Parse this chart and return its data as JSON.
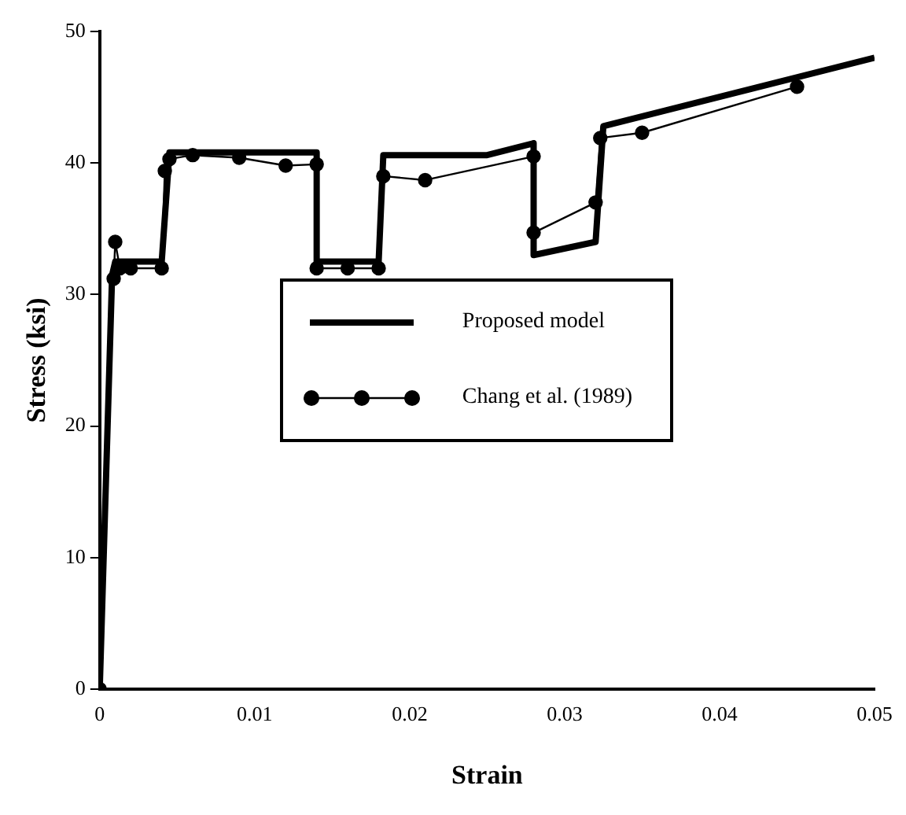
{
  "chart_data": {
    "type": "line",
    "xlabel": "Strain",
    "ylabel": "Stress (ksi)",
    "xlim": [
      0,
      0.05
    ],
    "ylim": [
      0,
      50
    ],
    "xticks": [
      0,
      0.01,
      0.02,
      0.03,
      0.04,
      0.05
    ],
    "yticks": [
      0,
      10,
      20,
      30,
      40,
      50
    ],
    "grid": false,
    "legend": "center right",
    "series": [
      {
        "name": "Proposed model",
        "color": "#000000",
        "marker": "none",
        "x": [
          0,
          0.0008,
          0.001,
          0.004,
          0.0045,
          0.014,
          0.014,
          0.018,
          0.0183,
          0.025,
          0.028,
          0.028,
          0.032,
          0.0325,
          0.05
        ],
        "values": [
          0,
          31.5,
          32.5,
          32.5,
          40.8,
          40.8,
          32.5,
          32.5,
          40.6,
          40.6,
          41.5,
          33,
          34,
          42.8,
          48
        ]
      },
      {
        "name": "Chang et al. (1989)",
        "color": "#000000",
        "marker": "circle",
        "x": [
          0,
          0.0009,
          0.001,
          0.0013,
          0.002,
          0.004,
          0.0042,
          0.0045,
          0.006,
          0.009,
          0.012,
          0.014,
          0.014,
          0.016,
          0.018,
          0.0183,
          0.021,
          0.028,
          0.028,
          0.032,
          0.0323,
          0.035,
          0.045
        ],
        "values": [
          0,
          31.2,
          34,
          32,
          32,
          32,
          39.4,
          40.3,
          40.6,
          40.4,
          39.8,
          39.9,
          32,
          32,
          32,
          39,
          38.7,
          40.5,
          34.7,
          37,
          41.9,
          42.3,
          45.8
        ]
      }
    ]
  }
}
